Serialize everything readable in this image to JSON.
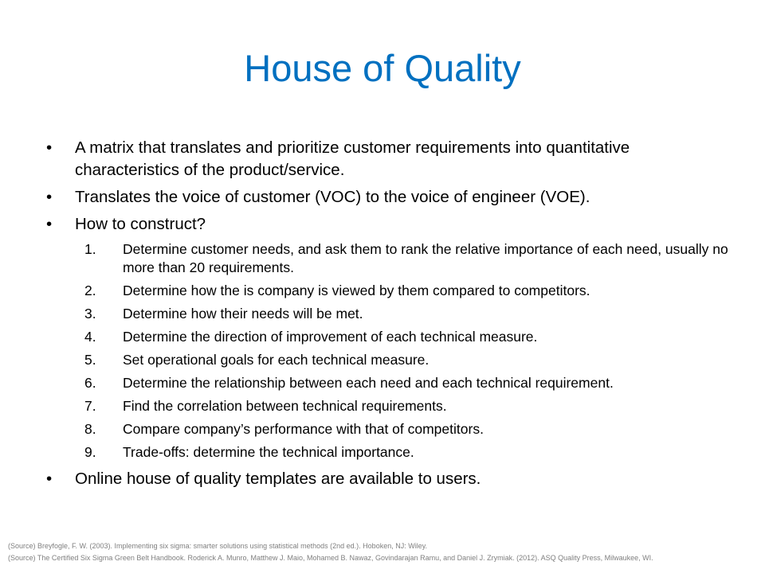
{
  "slide": {
    "title": "House of Quality",
    "bullets_top": [
      {
        "marker": "•",
        "text": "A matrix that translates and prioritize customer requirements into quantitative characteristics of the product/service."
      },
      {
        "marker": "•",
        "text": "Translates the voice of customer (VOC) to the voice of engineer (VOE)."
      },
      {
        "marker": "•",
        "text": "How to construct?"
      }
    ],
    "steps": [
      {
        "num": "1.",
        "text": "Determine customer needs, and ask them to rank the relative importance of each need, usually no more than 20 requirements."
      },
      {
        "num": "2.",
        "text": "Determine how the is company is viewed by them compared to competitors."
      },
      {
        "num": "3.",
        "text": "Determine how their needs will be met."
      },
      {
        "num": "4.",
        "text": "Determine the direction of improvement of each technical measure."
      },
      {
        "num": "5.",
        "text": "Set operational goals for each technical measure."
      },
      {
        "num": "6.",
        "text": "Determine the relationship between each need and each technical requirement."
      },
      {
        "num": "7.",
        "text": "Find the correlation between technical requirements."
      },
      {
        "num": "8.",
        "text": "Compare company’s performance with that of competitors."
      },
      {
        "num": "9.",
        "text": "Trade-offs: determine the technical importance."
      }
    ],
    "bullets_bottom": [
      {
        "marker": "•",
        "text": "Online house of quality templates are available to users."
      }
    ],
    "sources": [
      "(Source) Breyfogle, F. W. (2003). Implementing six sigma: smarter solutions using statistical methods (2nd ed.). Hoboken, NJ: Wiley.",
      "(Source) The Certified Six Sigma Green Belt Handbook. Roderick A. Munro, Matthew J. Maio, Mohamed B. Nawaz, Govindarajan Ramu, and Daniel J. Zrymiak. (2012). ASQ Quality Press, Milwaukee, WI."
    ],
    "colors": {
      "title": "#0070C0",
      "body_text": "#000000",
      "source_text": "#7f7f7f",
      "background": "#ffffff"
    }
  }
}
